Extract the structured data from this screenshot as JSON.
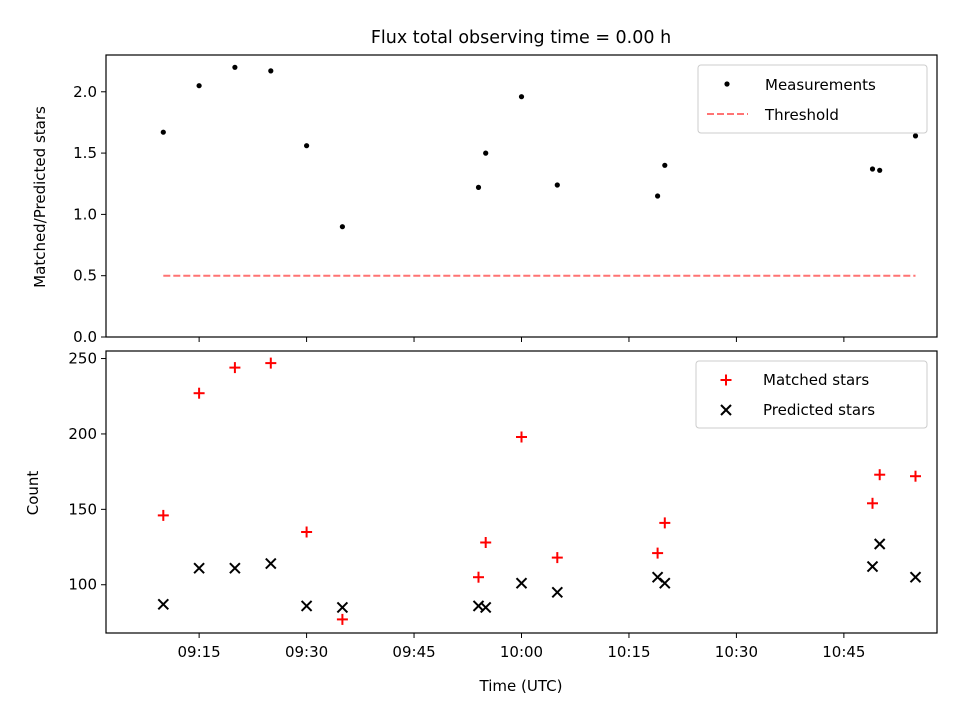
{
  "chart_data": [
    {
      "type": "scatter",
      "title": "Flux total observing time = 0.00 h",
      "xlabel": "",
      "ylabel": "Matched/Predicted stars",
      "ylim": [
        0,
        2.3
      ],
      "yticks": [
        0.0,
        0.5,
        1.0,
        1.5,
        2.0
      ],
      "ytick_labels": [
        "0.0",
        "0.5",
        "1.0",
        "1.5",
        "2.0"
      ],
      "grid": false,
      "legend_position": "top-right",
      "series": [
        {
          "name": "Measurements",
          "kind": "scatter",
          "marker": "dot",
          "color": "#000000",
          "x": [
            "09:10",
            "09:15",
            "09:20",
            "09:25",
            "09:30",
            "09:35",
            "09:54",
            "09:55",
            "10:00",
            "10:05",
            "10:19",
            "10:20",
            "10:49",
            "10:50",
            "10:55"
          ],
          "values": [
            1.67,
            2.05,
            2.2,
            2.17,
            1.56,
            0.9,
            1.22,
            1.5,
            1.96,
            1.24,
            1.15,
            1.4,
            1.37,
            1.36,
            1.64
          ]
        },
        {
          "name": "Threshold",
          "kind": "line",
          "style": "dashed",
          "color": "#ff7373",
          "x": [
            "09:10",
            "10:55"
          ],
          "values": [
            0.5,
            0.5
          ]
        }
      ]
    },
    {
      "type": "scatter",
      "title": "",
      "xlabel": "Time (UTC)",
      "ylabel": "Count",
      "ylim": [
        68,
        255
      ],
      "yticks": [
        100,
        150,
        200,
        250
      ],
      "ytick_labels": [
        "100",
        "150",
        "200",
        "250"
      ],
      "xlim": [
        "09:02",
        "10:58"
      ],
      "xticks": [
        "09:15",
        "09:30",
        "09:45",
        "10:00",
        "10:15",
        "10:30",
        "10:45"
      ],
      "xtick_labels": [
        "09:15",
        "09:30",
        "09:45",
        "10:00",
        "10:15",
        "10:30",
        "10:45"
      ],
      "grid": false,
      "legend_position": "top-right",
      "series": [
        {
          "name": "Matched stars",
          "marker": "plus",
          "color": "#ff0000",
          "x": [
            "09:10",
            "09:15",
            "09:20",
            "09:25",
            "09:30",
            "09:35",
            "09:54",
            "09:55",
            "10:00",
            "10:05",
            "10:19",
            "10:20",
            "10:49",
            "10:50",
            "10:55"
          ],
          "values": [
            146,
            227,
            244,
            247,
            135,
            77,
            105,
            128,
            198,
            118,
            121,
            141,
            154,
            173,
            172
          ]
        },
        {
          "name": "Predicted stars",
          "marker": "x",
          "color": "#000000",
          "x": [
            "09:10",
            "09:15",
            "09:20",
            "09:25",
            "09:30",
            "09:35",
            "09:54",
            "09:55",
            "10:00",
            "10:05",
            "10:19",
            "10:20",
            "10:49",
            "10:50",
            "10:55"
          ],
          "values": [
            87,
            111,
            111,
            114,
            86,
            85,
            86,
            85,
            101,
            95,
            105,
            101,
            112,
            127,
            105
          ]
        }
      ]
    }
  ]
}
